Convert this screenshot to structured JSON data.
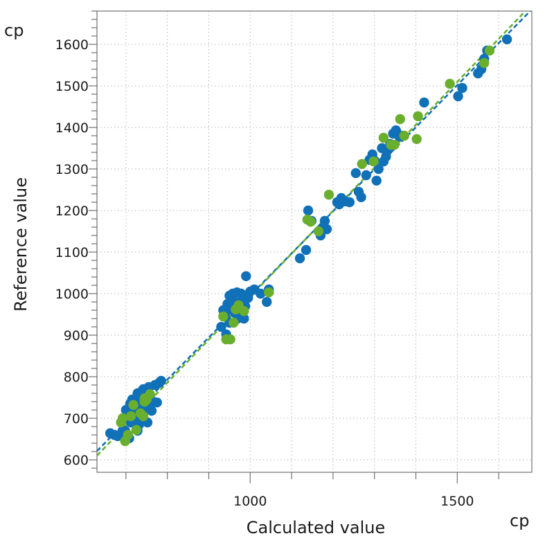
{
  "chart_data": {
    "type": "scatter",
    "xlabel": "Calculated value",
    "ylabel": "Reference value",
    "x_unit": "cp",
    "y_unit": "cp",
    "xlim": [
      630,
      1680
    ],
    "ylim": [
      570,
      1680
    ],
    "x_ticks": [
      1000,
      1500
    ],
    "x_minor_step": 100,
    "y_ticks": [
      600,
      700,
      800,
      900,
      1000,
      1100,
      1200,
      1300,
      1400,
      1500,
      1600
    ],
    "y_minor_step": 20,
    "grid": true,
    "colors": {
      "series_blue": "#1070b8",
      "series_green": "#6aae2e",
      "axis": "#707070",
      "grid": "#b5b5b5"
    },
    "series": [
      {
        "color": "#1070b8",
        "points": [
          [
            662,
            664
          ],
          [
            672,
            660
          ],
          [
            680,
            657
          ],
          [
            690,
            665
          ],
          [
            700,
            720
          ],
          [
            705,
            700
          ],
          [
            710,
            735
          ],
          [
            712,
            690
          ],
          [
            715,
            745
          ],
          [
            718,
            712
          ],
          [
            720,
            728
          ],
          [
            722,
            700
          ],
          [
            725,
            740
          ],
          [
            728,
            760
          ],
          [
            730,
            755
          ],
          [
            732,
            730
          ],
          [
            735,
            715
          ],
          [
            738,
            765
          ],
          [
            740,
            700
          ],
          [
            742,
            770
          ],
          [
            745,
            745
          ],
          [
            748,
            725
          ],
          [
            750,
            760
          ],
          [
            752,
            690
          ],
          [
            755,
            775
          ],
          [
            758,
            755
          ],
          [
            762,
            718
          ],
          [
            765,
            740
          ],
          [
            770,
            780
          ],
          [
            775,
            738
          ],
          [
            780,
            785
          ],
          [
            785,
            790
          ],
          [
            698,
            670
          ],
          [
            702,
            655
          ],
          [
            708,
            652
          ],
          [
            728,
            670
          ],
          [
            732,
            685
          ],
          [
            737,
            705
          ],
          [
            930,
            920
          ],
          [
            935,
            960
          ],
          [
            940,
            945
          ],
          [
            945,
            975
          ],
          [
            950,
            995
          ],
          [
            955,
            962
          ],
          [
            958,
            1000
          ],
          [
            962,
            980
          ],
          [
            965,
            952
          ],
          [
            968,
            1003
          ],
          [
            970,
            940
          ],
          [
            975,
            980
          ],
          [
            978,
            1000
          ],
          [
            980,
            962
          ],
          [
            982,
            995
          ],
          [
            985,
            940
          ],
          [
            988,
            970
          ],
          [
            990,
            1042
          ],
          [
            995,
            990
          ],
          [
            1000,
            1005
          ],
          [
            1010,
            1010
          ],
          [
            1025,
            1000
          ],
          [
            1040,
            980
          ],
          [
            1045,
            1010
          ],
          [
            950,
            930
          ],
          [
            942,
            902
          ],
          [
            1120,
            1085
          ],
          [
            1135,
            1105
          ],
          [
            1140,
            1200
          ],
          [
            1148,
            1175
          ],
          [
            1170,
            1140
          ],
          [
            1175,
            1158
          ],
          [
            1180,
            1175
          ],
          [
            1185,
            1155
          ],
          [
            1210,
            1220
          ],
          [
            1215,
            1215
          ],
          [
            1220,
            1230
          ],
          [
            1230,
            1222
          ],
          [
            1240,
            1220
          ],
          [
            1255,
            1290
          ],
          [
            1262,
            1245
          ],
          [
            1268,
            1232
          ],
          [
            1280,
            1285
          ],
          [
            1288,
            1322
          ],
          [
            1295,
            1335
          ],
          [
            1300,
            1320
          ],
          [
            1305,
            1272
          ],
          [
            1310,
            1300
          ],
          [
            1318,
            1350
          ],
          [
            1322,
            1318
          ],
          [
            1328,
            1330
          ],
          [
            1332,
            1345
          ],
          [
            1338,
            1360
          ],
          [
            1345,
            1385
          ],
          [
            1352,
            1393
          ],
          [
            1360,
            1378
          ],
          [
            1368,
            1380
          ],
          [
            1420,
            1460
          ],
          [
            1502,
            1475
          ],
          [
            1512,
            1495
          ],
          [
            1550,
            1530
          ],
          [
            1558,
            1540
          ],
          [
            1565,
            1565
          ],
          [
            1572,
            1585
          ],
          [
            1620,
            1612
          ]
        ]
      },
      {
        "color": "#6aae2e",
        "points": [
          [
            688,
            690
          ],
          [
            692,
            700
          ],
          [
            698,
            645
          ],
          [
            705,
            660
          ],
          [
            712,
            705
          ],
          [
            718,
            732
          ],
          [
            725,
            672
          ],
          [
            735,
            712
          ],
          [
            742,
            705
          ],
          [
            745,
            748
          ],
          [
            750,
            745
          ],
          [
            758,
            758
          ],
          [
            745,
            740
          ],
          [
            935,
            945
          ],
          [
            942,
            890
          ],
          [
            952,
            890
          ],
          [
            960,
            930
          ],
          [
            965,
            962
          ],
          [
            972,
            972
          ],
          [
            985,
            958
          ],
          [
            1045,
            1003
          ],
          [
            1138,
            1178
          ],
          [
            1146,
            1173
          ],
          [
            1165,
            1150
          ],
          [
            1190,
            1238
          ],
          [
            1270,
            1312
          ],
          [
            1298,
            1318
          ],
          [
            1322,
            1375
          ],
          [
            1340,
            1358
          ],
          [
            1348,
            1358
          ],
          [
            1362,
            1420
          ],
          [
            1372,
            1380
          ],
          [
            1402,
            1372
          ],
          [
            1405,
            1427
          ],
          [
            1482,
            1505
          ],
          [
            1565,
            1555
          ],
          [
            1578,
            1585
          ]
        ]
      }
    ],
    "fit_lines": [
      {
        "color": "#1070b8",
        "x": [
          630,
          1680
        ],
        "y": [
          621,
          1684
        ]
      },
      {
        "color": "#6aae2e",
        "x": [
          630,
          1680
        ],
        "y": [
          610,
          1696
        ]
      }
    ]
  }
}
